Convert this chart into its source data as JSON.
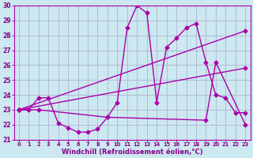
{
  "background_color": "#cce8f0",
  "grid_color": "#aaaacc",
  "line_color": "#aa00aa",
  "xlabel": "Windchill (Refroidissement éolien,°C)",
  "xlabel_color": "#880088",
  "xtick_color": "#880088",
  "ytick_color": "#880088",
  "xlim": [
    -0.5,
    23.5
  ],
  "ylim": [
    21,
    30
  ],
  "yticks": [
    21,
    22,
    23,
    24,
    25,
    26,
    27,
    28,
    29,
    30
  ],
  "xticks": [
    0,
    1,
    2,
    3,
    4,
    5,
    6,
    7,
    8,
    9,
    10,
    11,
    12,
    13,
    14,
    15,
    16,
    17,
    18,
    19,
    20,
    21,
    22,
    23
  ],
  "series": [
    {
      "x": [
        0,
        1,
        2,
        3,
        4,
        5,
        6,
        7,
        8,
        9,
        10,
        11,
        12,
        13,
        14,
        15,
        16,
        17,
        18,
        19,
        20,
        21,
        22,
        23
      ],
      "y": [
        23.0,
        23.0,
        23.8,
        23.8,
        22.1,
        21.8,
        21.5,
        21.5,
        21.7,
        22.5,
        23.5,
        28.5,
        30.0,
        29.5,
        23.5,
        27.2,
        27.8,
        28.5,
        28.8,
        26.2,
        24.0,
        23.8,
        22.8,
        22.8
      ]
    },
    {
      "x": [
        0,
        23
      ],
      "y": [
        23.0,
        28.3
      ]
    },
    {
      "x": [
        0,
        23
      ],
      "y": [
        23.0,
        25.8
      ]
    },
    {
      "x": [
        0,
        2,
        9,
        19,
        20,
        23
      ],
      "y": [
        23.0,
        23.0,
        22.5,
        22.3,
        26.2,
        22.0
      ]
    }
  ],
  "marker": "D",
  "markersize": 2.5,
  "linewidth": 1.0
}
